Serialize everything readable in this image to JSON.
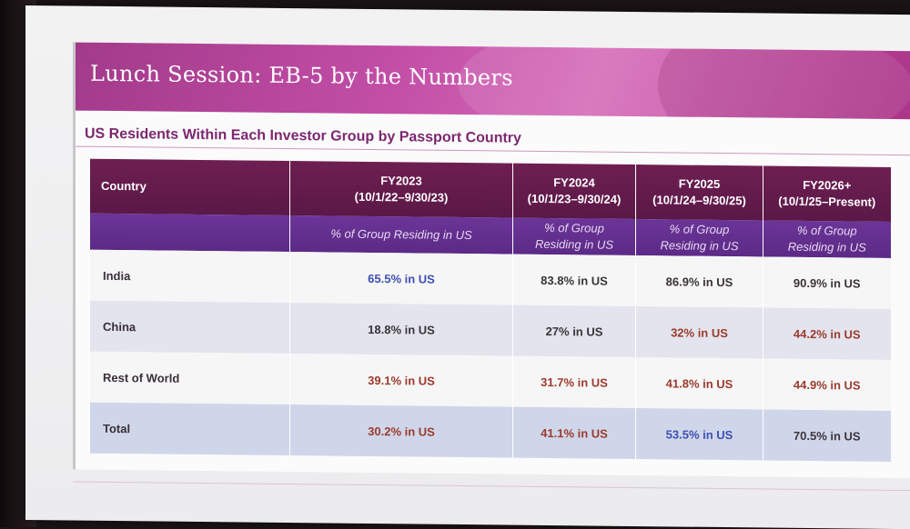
{
  "slide": {
    "title": "Lunch Session: EB-5 by the Numbers",
    "subtitle": "US Residents Within Each Investor Group by Passport Country"
  },
  "table": {
    "country_header": "Country",
    "columns": [
      {
        "year": "FY2023",
        "range": "(10/1/22–9/30/23)",
        "sub_line1": "% of Group Residing in US",
        "sub_line2": ""
      },
      {
        "year": "FY2024",
        "range": "(10/1/23–9/30/24)",
        "sub_line1": "% of Group",
        "sub_line2": "Residing in US"
      },
      {
        "year": "FY2025",
        "range": "(10/1/24–9/30/25)",
        "sub_line1": "% of Group",
        "sub_line2": "Residing in US"
      },
      {
        "year": "FY2026+",
        "range": "(10/1/25–Present)",
        "sub_line1": "% of Group",
        "sub_line2": "Residing in US"
      }
    ],
    "rows": [
      {
        "country": "India",
        "values": [
          "65.5% in US",
          "83.8% in US",
          "86.9% in US",
          "90.9% in US"
        ]
      },
      {
        "country": "China",
        "values": [
          "18.8% in US",
          "27% in US",
          "32% in US",
          "44.2% in US"
        ]
      },
      {
        "country": "Rest of World",
        "values": [
          "39.1% in US",
          "31.7% in US",
          "41.8% in US",
          "44.9% in US"
        ]
      },
      {
        "country": "Total",
        "values": [
          "30.2% in US",
          "41.1% in US",
          "53.5% in US",
          "70.5% in US"
        ]
      }
    ]
  },
  "colors": {
    "banner": "#c24ea6",
    "header_row": "#6e1f52",
    "subheader_row": "#6b3598",
    "value_blue": "#3e4fb3",
    "value_red": "#9c3a2c",
    "value_dark": "#3a3438"
  }
}
